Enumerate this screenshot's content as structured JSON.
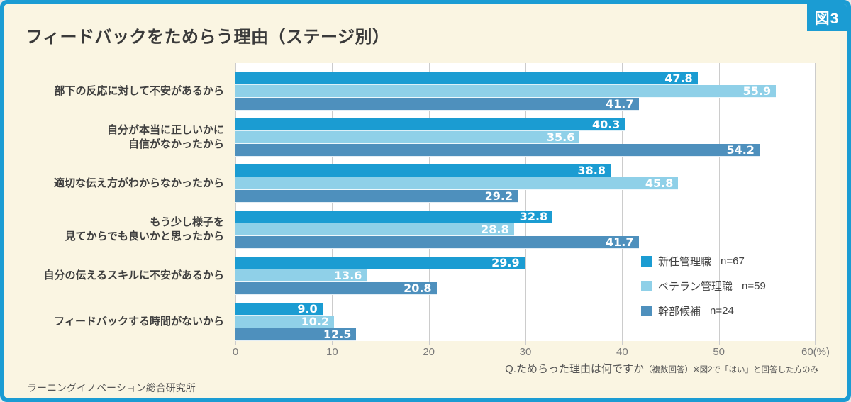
{
  "figure_tag": "図3",
  "title": "フィードバックをためらう理由（ステージ別）",
  "source": "ラーニングイノベーション総合研究所",
  "footnote": {
    "question": "Q.ためらった理由は何ですか",
    "note": "（複数回答）※図2で「はい」と回答した方のみ"
  },
  "colors": {
    "frame_blue": "#1b9cd3",
    "background_cream": "#faf5e2",
    "plot_white": "#ffffff",
    "gridline": "#cccccc",
    "series": [
      "#1b9cd2",
      "#8fd0e8",
      "#4e90bd"
    ]
  },
  "legend": {
    "items": [
      {
        "label": "新任管理職",
        "n": "n=67",
        "color": "#1b9cd2"
      },
      {
        "label": "ベテラン管理職",
        "n": "n=59",
        "color": "#8fd0e8"
      },
      {
        "label": "幹部候補",
        "n": "n=24",
        "color": "#4e90bd"
      }
    ]
  },
  "chart_data": {
    "type": "bar",
    "orientation": "horizontal",
    "title": "フィードバックをためらう理由（ステージ別）",
    "categories": [
      "部下の反応に対して不安があるから",
      "自分が本当に正しいかに\n自信がなかったから",
      "適切な伝え方がわからなかったから",
      "もう少し様子を\n見てからでも良いかと思ったから",
      "自分の伝えるスキルに不安があるから",
      "フィードバックする時間がないから"
    ],
    "series": [
      {
        "name": "新任管理職",
        "n": 67,
        "color": "#1b9cd2",
        "values": [
          47.8,
          40.3,
          38.8,
          32.8,
          29.9,
          9.0
        ]
      },
      {
        "name": "ベテラン管理職",
        "n": 59,
        "color": "#8fd0e8",
        "values": [
          55.9,
          35.6,
          45.8,
          28.8,
          13.6,
          10.2
        ]
      },
      {
        "name": "幹部候補",
        "n": 24,
        "color": "#4e90bd",
        "values": [
          41.7,
          54.2,
          29.2,
          41.7,
          20.8,
          12.5
        ]
      }
    ],
    "xlim": [
      0,
      60
    ],
    "xticks": [
      0,
      10,
      20,
      30,
      40,
      50,
      60
    ],
    "xtick_suffix_last": "(%)",
    "grid": true,
    "legend_position": "right-middle",
    "value_labels": "inside-end, one decimal"
  }
}
